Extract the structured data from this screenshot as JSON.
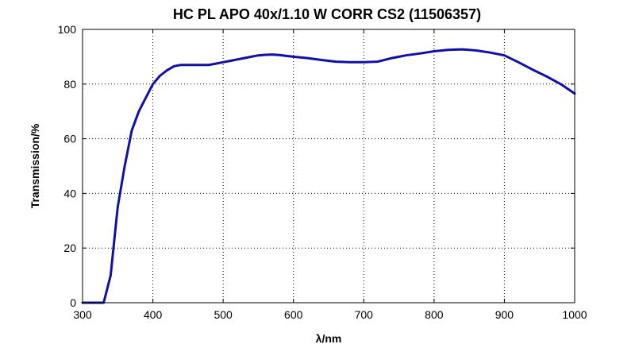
{
  "chart_data": {
    "type": "line",
    "title": "HC PL APO 40x/1.10 W CORR CS2 (11506357)",
    "xlabel": "λ/nm",
    "ylabel": "Transmission/%",
    "xlim": [
      300,
      1000
    ],
    "ylim": [
      0,
      100
    ],
    "x_ticks": [
      "300",
      "400",
      "500",
      "600",
      "700",
      "800",
      "900",
      "1000"
    ],
    "y_ticks": [
      "0",
      "20",
      "40",
      "60",
      "80",
      "100"
    ],
    "grid": true,
    "grid_style": "dotted",
    "line_color": "#1010a8",
    "series": [
      {
        "x": [
          300,
          330,
          340,
          350,
          360,
          370,
          380,
          390,
          400,
          410,
          420,
          430,
          440,
          450,
          460,
          470,
          480,
          490,
          500,
          510,
          520,
          530,
          540,
          550,
          560,
          570,
          580,
          590,
          600,
          620,
          640,
          660,
          680,
          700,
          720,
          740,
          760,
          780,
          800,
          820,
          840,
          860,
          880,
          900,
          920,
          940,
          960,
          980,
          1000
        ],
        "y": [
          0,
          0,
          10,
          35,
          50,
          63,
          70,
          75,
          80,
          83,
          85,
          86.5,
          87,
          87,
          87,
          87,
          87,
          87.5,
          88,
          88.5,
          89,
          89.5,
          90,
          90.5,
          90.7,
          90.8,
          90.6,
          90.3,
          90,
          89.5,
          88.8,
          88.2,
          88,
          88,
          88.2,
          89.5,
          90.5,
          91.2,
          92,
          92.5,
          92.7,
          92.3,
          91.5,
          90.5,
          88,
          85.3,
          82.8,
          80,
          76.5
        ]
      }
    ]
  }
}
